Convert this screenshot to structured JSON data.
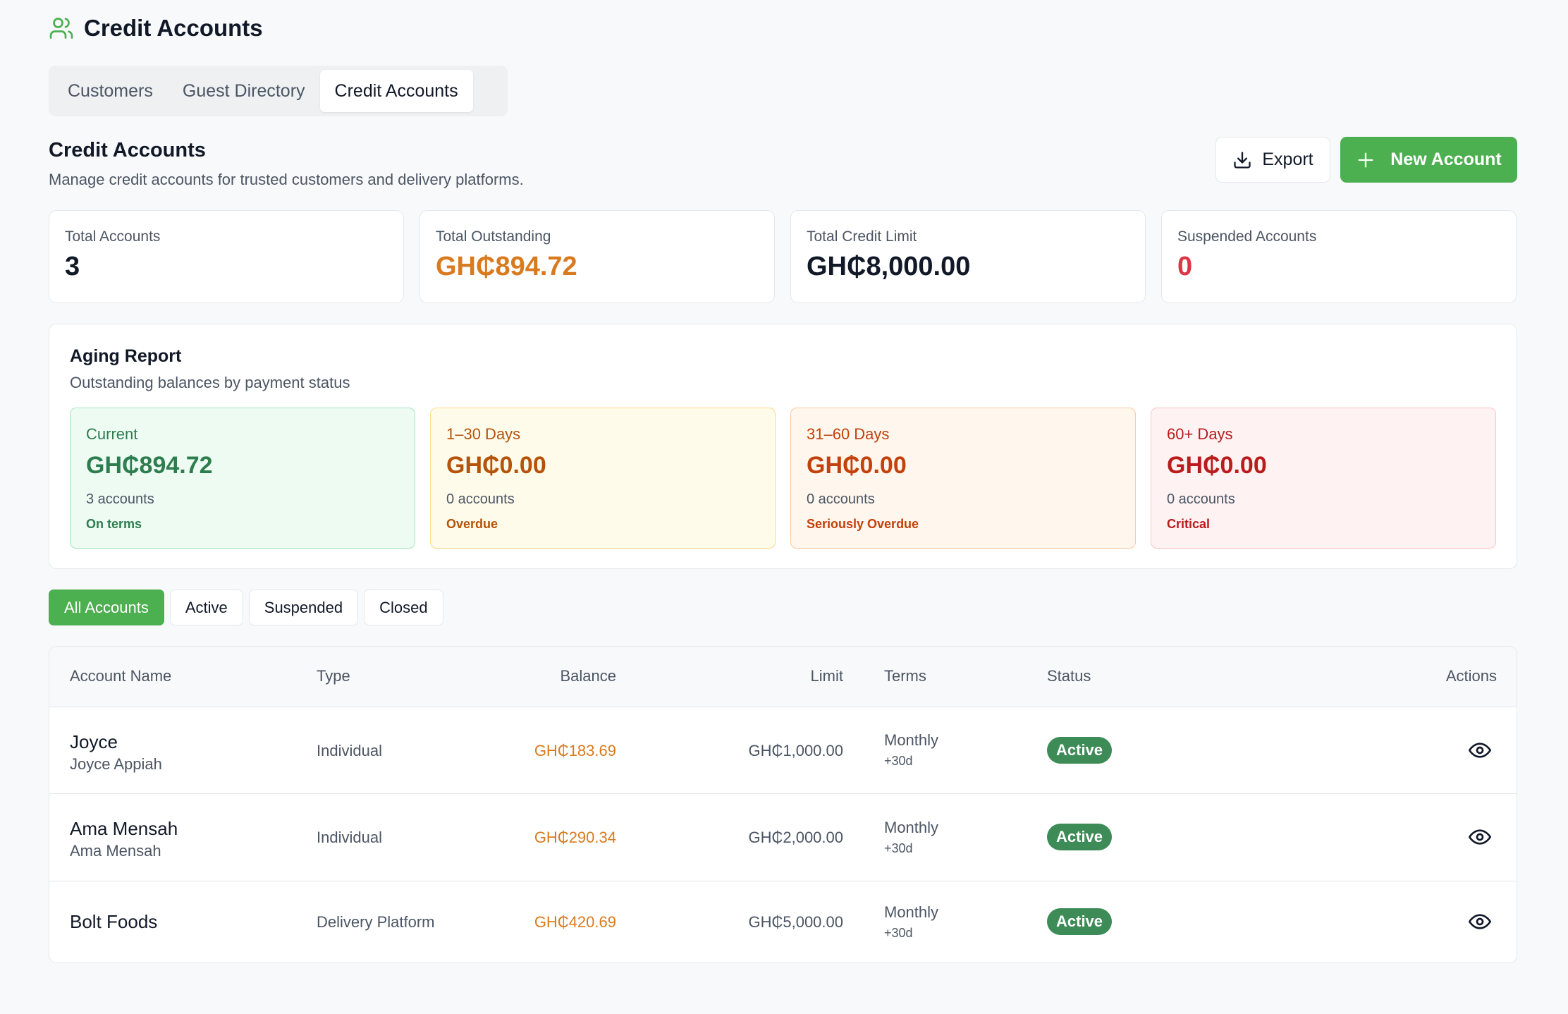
{
  "header": {
    "title": "Credit Accounts",
    "icon": "users-icon"
  },
  "tabs": [
    {
      "label": "Customers"
    },
    {
      "label": "Guest Directory"
    },
    {
      "label": "Credit Accounts"
    }
  ],
  "section": {
    "title": "Credit Accounts",
    "subtitle": "Manage credit accounts for trusted customers and delivery platforms."
  },
  "toolbar": {
    "export_label": "Export",
    "new_label": "New Account"
  },
  "stats": [
    {
      "label": "Total Accounts",
      "value": "3",
      "color": "#111827"
    },
    {
      "label": "Total Outstanding",
      "value": "GH₵894.72",
      "color": "#d97a1f"
    },
    {
      "label": "Total Credit Limit",
      "value": "GH₵8,000.00",
      "color": "#111827"
    },
    {
      "label": "Suspended Accounts",
      "value": "0",
      "color": "#dc3545"
    }
  ],
  "aging": {
    "title": "Aging Report",
    "subtitle": "Outstanding balances by payment status",
    "buckets": [
      {
        "label": "Current",
        "amount": "GH₵894.72",
        "count": "3 accounts",
        "note": "On terms",
        "color": "#2e7d4f",
        "bg": "#edfbf3",
        "border": "#a7e3c0"
      },
      {
        "label": "1–30 Days",
        "amount": "GH₵0.00",
        "count": "0 accounts",
        "note": "Overdue",
        "color": "#b45309",
        "bg": "#fffbeb",
        "border": "#fcd98a"
      },
      {
        "label": "31–60 Days",
        "amount": "GH₵0.00",
        "count": "0 accounts",
        "note": "Seriously Overdue",
        "color": "#c2410c",
        "bg": "#fff6ed",
        "border": "#fdc99e"
      },
      {
        "label": "60+ Days",
        "amount": "GH₵0.00",
        "count": "0 accounts",
        "note": "Critical",
        "color": "#b91c1c",
        "bg": "#fef2f2",
        "border": "#fbc4c4"
      }
    ]
  },
  "filters": [
    {
      "label": "All Accounts"
    },
    {
      "label": "Active"
    },
    {
      "label": "Suspended"
    },
    {
      "label": "Closed"
    }
  ],
  "table": {
    "headers": {
      "name": "Account Name",
      "type": "Type",
      "balance": "Balance",
      "limit": "Limit",
      "terms": "Terms",
      "status": "Status",
      "actions": "Actions"
    },
    "rows": [
      {
        "name": "Joyce",
        "contact": "Joyce Appiah",
        "type": "Individual",
        "balance": "GH₵183.69",
        "limit": "GH₵1,000.00",
        "terms": "Monthly",
        "terms_days": "+30d",
        "status": "Active"
      },
      {
        "name": "Ama Mensah",
        "contact": "Ama Mensah",
        "type": "Individual",
        "balance": "GH₵290.34",
        "limit": "GH₵2,000.00",
        "terms": "Monthly",
        "terms_days": "+30d",
        "status": "Active"
      },
      {
        "name": "Bolt Foods",
        "contact": "",
        "type": "Delivery Platform",
        "balance": "GH₵420.69",
        "limit": "GH₵5,000.00",
        "terms": "Monthly",
        "terms_days": "+30d",
        "status": "Active"
      }
    ]
  },
  "colors": {
    "accent": "#4caf50",
    "badge": "#3d8b57",
    "balance": "#d97a1f"
  }
}
